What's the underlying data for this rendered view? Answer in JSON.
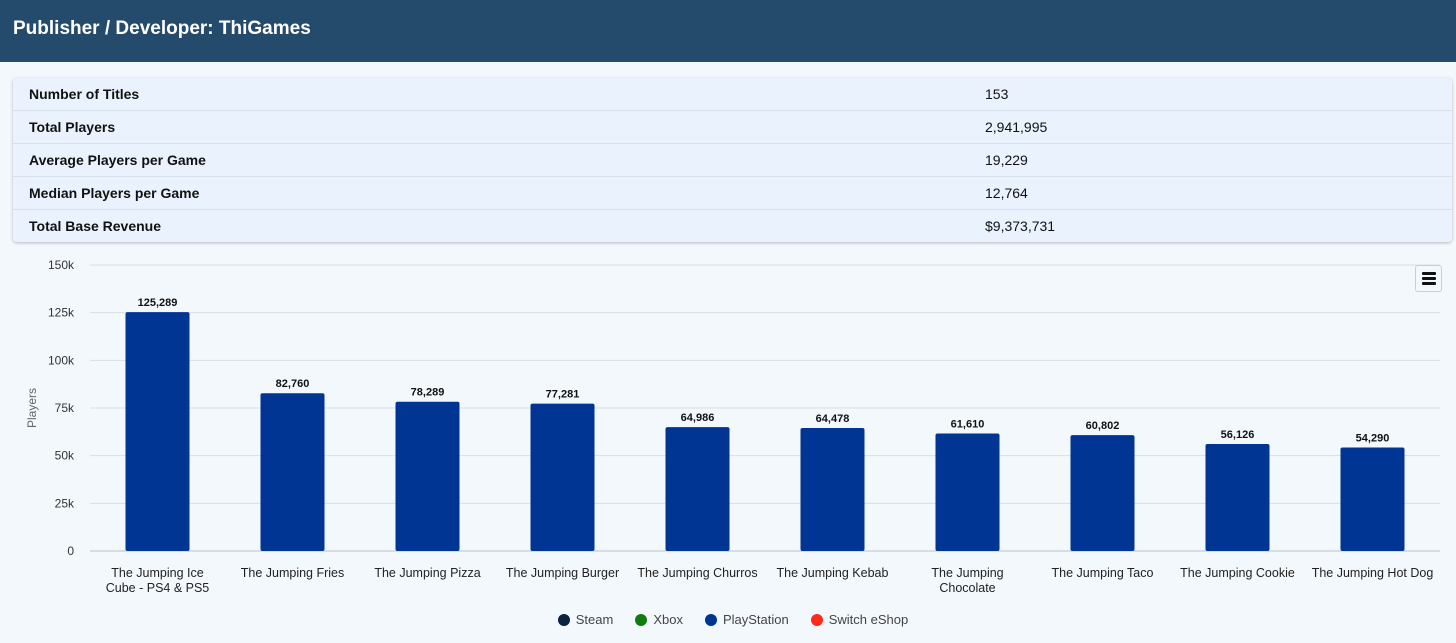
{
  "header": {
    "title": "Publisher / Developer: ThiGames"
  },
  "stats": [
    {
      "label": "Number of Titles",
      "value": "153"
    },
    {
      "label": "Total Players",
      "value": "2,941,995"
    },
    {
      "label": "Average Players per Game",
      "value": "19,229"
    },
    {
      "label": "Median Players per Game",
      "value": "12,764"
    },
    {
      "label": "Total Base Revenue",
      "value": "$9,373,731"
    }
  ],
  "colors": {
    "bar": "#003594",
    "header": "#244b6c"
  },
  "chart_data": {
    "type": "bar",
    "ylabel": "Players",
    "ylim": [
      0,
      150000
    ],
    "yticks": [
      0,
      25000,
      50000,
      75000,
      100000,
      125000,
      150000
    ],
    "ytick_labels": [
      "0",
      "25k",
      "50k",
      "75k",
      "100k",
      "125k",
      "150k"
    ],
    "categories": [
      [
        "The Jumping Ice",
        "Cube - PS4 & PS5"
      ],
      [
        "The Jumping Fries"
      ],
      [
        "The Jumping Pizza"
      ],
      [
        "The Jumping Burger"
      ],
      [
        "The Jumping Churros"
      ],
      [
        "The Jumping Kebab"
      ],
      [
        "The Jumping",
        "Chocolate"
      ],
      [
        "The Jumping Taco"
      ],
      [
        "The Jumping Cookie"
      ],
      [
        "The Jumping Hot Dog"
      ]
    ],
    "values": [
      125289,
      82760,
      78289,
      77281,
      64986,
      64478,
      61610,
      60802,
      56126,
      54290
    ],
    "data_labels": [
      "125,289",
      "82,760",
      "78,289",
      "77,281",
      "64,986",
      "64,478",
      "61,610",
      "60,802",
      "56,126",
      "54,290"
    ],
    "legend": [
      {
        "name": "Steam",
        "color": "#0c2340"
      },
      {
        "name": "Xbox",
        "color": "#107c10"
      },
      {
        "name": "PlayStation",
        "color": "#003594"
      },
      {
        "name": "Switch eShop",
        "color": "#ff2a1a"
      }
    ],
    "legend_position": "bottom-center",
    "grid": true
  }
}
